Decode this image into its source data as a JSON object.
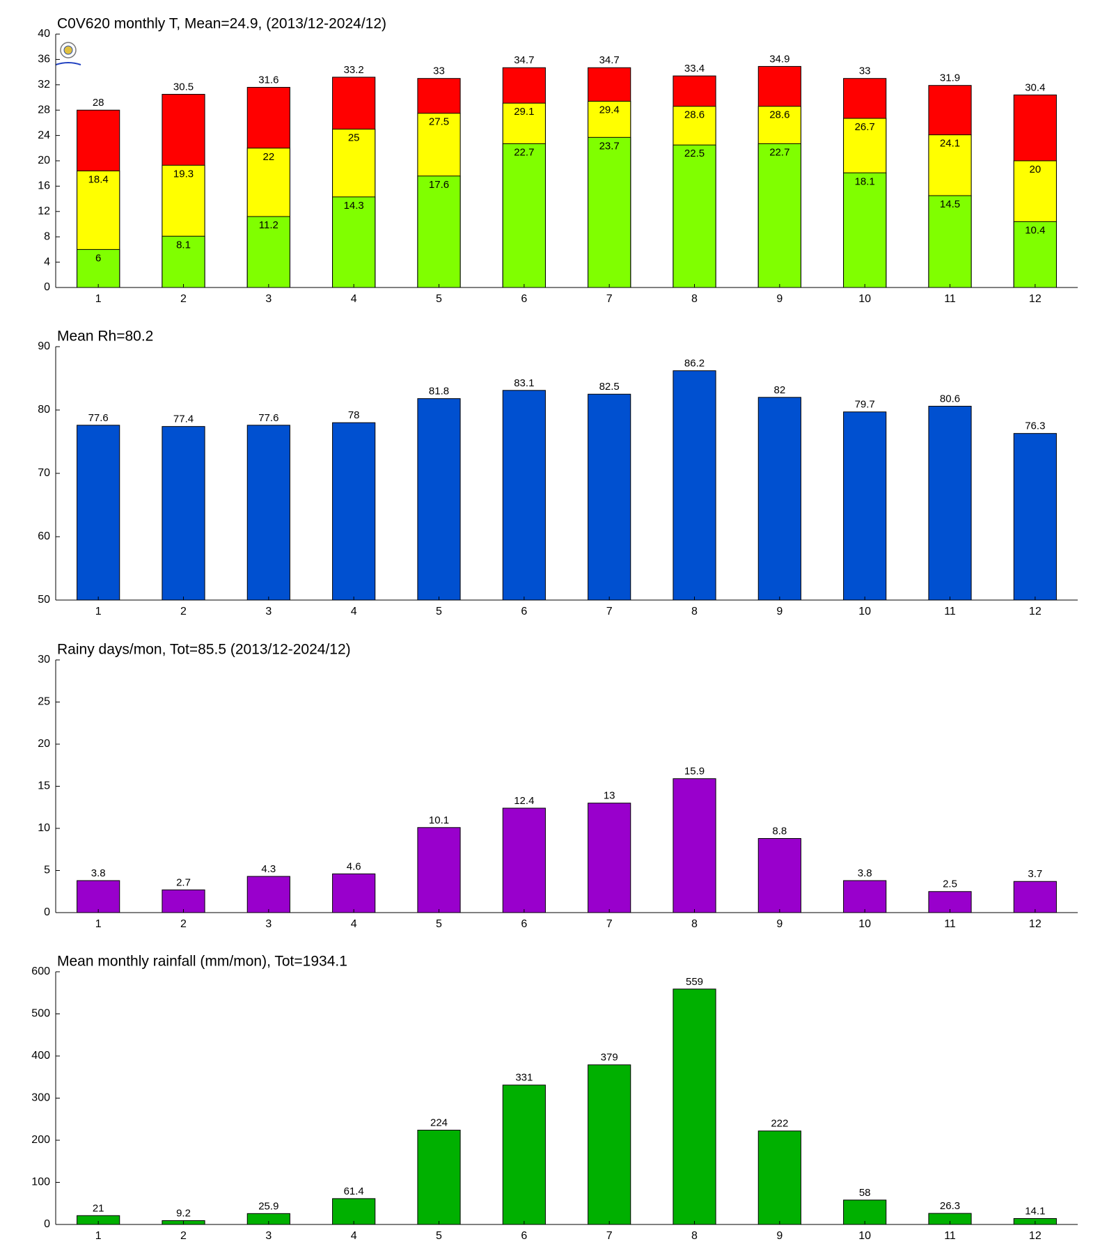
{
  "chart_data": [
    {
      "type": "bar",
      "overlay": true,
      "title": "C0V620 monthly T, Mean=24.9, (2013/12-2024/12)",
      "categories": [
        "1",
        "2",
        "3",
        "4",
        "5",
        "6",
        "7",
        "8",
        "9",
        "10",
        "11",
        "12"
      ],
      "series": [
        {
          "color": "#ff0000",
          "values": [
            28,
            30.5,
            31.6,
            33.2,
            33,
            34.7,
            34.7,
            33.4,
            34.9,
            33,
            31.9,
            30.4
          ]
        },
        {
          "color": "#ffff00",
          "values": [
            18.4,
            19.3,
            22,
            25,
            27.5,
            29.1,
            29.4,
            28.6,
            28.6,
            26.7,
            24.1,
            20
          ]
        },
        {
          "color": "#80ff00",
          "values": [
            6,
            8.1,
            11.2,
            14.3,
            17.6,
            22.7,
            23.7,
            22.5,
            22.7,
            18.1,
            14.5,
            10.4
          ]
        }
      ],
      "ylim": [
        0,
        40
      ],
      "yticks": [
        0,
        4,
        8,
        12,
        16,
        20,
        24,
        28,
        32,
        36,
        40
      ]
    },
    {
      "type": "bar",
      "title": "Mean Rh=80.2",
      "categories": [
        "1",
        "2",
        "3",
        "4",
        "5",
        "6",
        "7",
        "8",
        "9",
        "10",
        "11",
        "12"
      ],
      "series": [
        {
          "color": "#0050d0",
          "values": [
            77.6,
            77.4,
            77.6,
            78,
            81.8,
            83.1,
            82.5,
            86.2,
            82,
            79.7,
            80.6,
            76.3
          ]
        }
      ],
      "ylim": [
        50,
        90
      ],
      "yticks": [
        50,
        60,
        70,
        80,
        90
      ]
    },
    {
      "type": "bar",
      "title": "Rainy days/mon, Tot=85.5 (2013/12-2024/12)",
      "categories": [
        "1",
        "2",
        "3",
        "4",
        "5",
        "6",
        "7",
        "8",
        "9",
        "10",
        "11",
        "12"
      ],
      "series": [
        {
          "color": "#9900cc",
          "values": [
            3.8,
            2.7,
            4.3,
            4.6,
            10.1,
            12.4,
            13,
            15.9,
            8.8,
            3.8,
            2.5,
            3.7
          ]
        }
      ],
      "ylim": [
        0,
        30
      ],
      "yticks": [
        0,
        5,
        10,
        15,
        20,
        25,
        30
      ]
    },
    {
      "type": "bar",
      "title": "Mean monthly rainfall (mm/mon), Tot=1934.1",
      "categories": [
        "1",
        "2",
        "3",
        "4",
        "5",
        "6",
        "7",
        "8",
        "9",
        "10",
        "11",
        "12"
      ],
      "series": [
        {
          "color": "#00b000",
          "values": [
            21,
            9.2,
            25.9,
            61.4,
            224,
            331,
            379,
            559,
            222,
            58,
            26.3,
            14.1
          ]
        }
      ],
      "ylim": [
        0,
        600
      ],
      "yticks": [
        0,
        100,
        200,
        300,
        400,
        500,
        600
      ]
    }
  ]
}
